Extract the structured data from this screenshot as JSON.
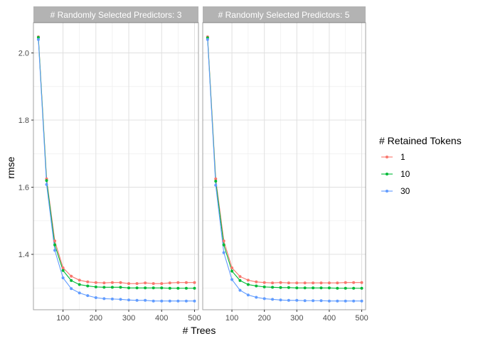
{
  "chart_data": {
    "type": "line",
    "title": "",
    "xlabel": "# Trees",
    "ylabel": "rmse",
    "xlim": [
      10,
      512
    ],
    "ylim": [
      1.235,
      2.09
    ],
    "x_ticks": [
      100,
      200,
      300,
      400,
      500
    ],
    "y_ticks": [
      1.4,
      1.6,
      1.8,
      2.0
    ],
    "x_tick_labels": [
      "100",
      "200",
      "300",
      "400",
      "500"
    ],
    "y_tick_labels": [
      "1.4",
      "1.6",
      "1.8",
      "2.0"
    ],
    "grid": true,
    "legend": {
      "title": "# Retained Tokens",
      "position": "right"
    },
    "x": [
      25,
      50,
      75,
      100,
      125,
      150,
      175,
      200,
      225,
      250,
      275,
      300,
      325,
      350,
      375,
      400,
      425,
      450,
      475,
      500
    ],
    "panels": [
      {
        "strip_label": "# Randomly Selected Predictors: 3",
        "series": [
          {
            "name": "1",
            "color": "#F8766D",
            "values": [
              2.048,
              1.625,
              1.44,
              1.36,
              1.335,
              1.323,
              1.318,
              1.316,
              1.315,
              1.316,
              1.316,
              1.313,
              1.313,
              1.315,
              1.313,
              1.313,
              1.315,
              1.316,
              1.316,
              1.316
            ]
          },
          {
            "name": "10",
            "color": "#00BA38",
            "values": [
              2.046,
              1.62,
              1.428,
              1.352,
              1.322,
              1.31,
              1.306,
              1.303,
              1.302,
              1.302,
              1.302,
              1.3,
              1.3,
              1.3,
              1.3,
              1.3,
              1.299,
              1.299,
              1.299,
              1.299
            ]
          },
          {
            "name": "30",
            "color": "#619CFF",
            "values": [
              2.04,
              1.608,
              1.412,
              1.33,
              1.298,
              1.285,
              1.277,
              1.271,
              1.268,
              1.267,
              1.266,
              1.264,
              1.263,
              1.263,
              1.261,
              1.261,
              1.261,
              1.261,
              1.261,
              1.261
            ]
          }
        ]
      },
      {
        "strip_label": "# Randomly Selected Predictors: 5",
        "series": [
          {
            "name": "1",
            "color": "#F8766D",
            "values": [
              2.048,
              1.625,
              1.44,
              1.36,
              1.334,
              1.323,
              1.318,
              1.316,
              1.315,
              1.316,
              1.315,
              1.315,
              1.315,
              1.315,
              1.315,
              1.315,
              1.315,
              1.316,
              1.316,
              1.316
            ]
          },
          {
            "name": "10",
            "color": "#00BA38",
            "values": [
              2.045,
              1.618,
              1.428,
              1.35,
              1.322,
              1.31,
              1.306,
              1.303,
              1.302,
              1.301,
              1.301,
              1.3,
              1.3,
              1.3,
              1.3,
              1.3,
              1.299,
              1.299,
              1.299,
              1.299
            ]
          },
          {
            "name": "30",
            "color": "#619CFF",
            "values": [
              2.04,
              1.606,
              1.405,
              1.325,
              1.293,
              1.279,
              1.272,
              1.268,
              1.266,
              1.264,
              1.263,
              1.263,
              1.262,
              1.262,
              1.262,
              1.261,
              1.261,
              1.261,
              1.261,
              1.261
            ]
          }
        ]
      }
    ]
  }
}
